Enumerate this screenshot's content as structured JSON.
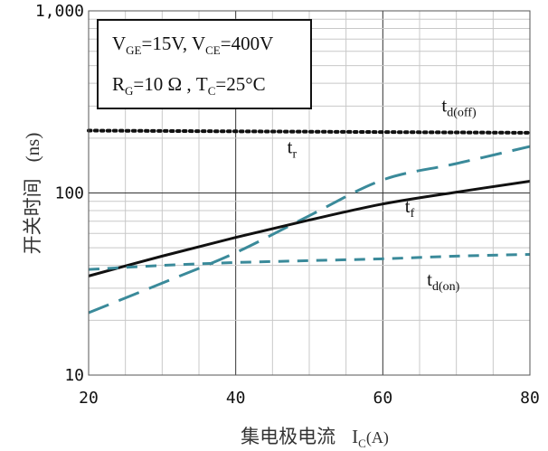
{
  "chart_data": {
    "type": "line",
    "xlabel": "集电极电流",
    "xlabel_symbol": "I",
    "xlabel_sub": "C",
    "xlabel_unit": "(A)",
    "ylabel": "开关时间",
    "ylabel_unit": "(ns)",
    "xlim": [
      20,
      80
    ],
    "ylim": [
      10,
      1000
    ],
    "yscale": "log",
    "x_ticks": [
      "20",
      "40",
      "60",
      "80"
    ],
    "y_ticks": [
      "10",
      "100",
      "1,000"
    ],
    "x_tick_values": [
      20,
      40,
      60,
      80
    ],
    "y_tick_values": [
      10,
      100,
      1000
    ],
    "grid": true,
    "conditions": {
      "line1": {
        "V1": "V",
        "V1_sub": "GE",
        "V1_val": "=15V, ",
        "V2": "V",
        "V2_sub": "CE",
        "V2_val": "=400V"
      },
      "line2": {
        "R": "R",
        "R_sub": "G",
        "R_val": "=10 Ω , ",
        "T": "T",
        "T_sub": "C",
        "T_val": "=25°C"
      }
    },
    "series": [
      {
        "name": "t",
        "sub": "d(off)",
        "style": "dotted",
        "color": "#111111",
        "x": [
          20,
          30,
          40,
          50,
          60,
          70,
          80
        ],
        "y": [
          220,
          219,
          218,
          217,
          216,
          215,
          214
        ]
      },
      {
        "name": "t",
        "sub": "r",
        "style": "dashed",
        "color": "#3a8a9a",
        "x": [
          20,
          30,
          40,
          50,
          60,
          70,
          80
        ],
        "y": [
          22,
          32,
          47,
          75,
          118,
          145,
          180
        ]
      },
      {
        "name": "t",
        "sub": "f",
        "style": "solid",
        "color": "#111111",
        "x": [
          20,
          30,
          40,
          50,
          60,
          70,
          80
        ],
        "y": [
          35,
          45,
          57,
          71,
          87,
          101,
          116
        ]
      },
      {
        "name": "t",
        "sub": "d(on)",
        "style": "dashed-short",
        "color": "#3a8a9a",
        "x": [
          20,
          30,
          40,
          50,
          60,
          70,
          80
        ],
        "y": [
          38,
          40,
          41.5,
          42.5,
          43.5,
          45,
          46
        ]
      }
    ]
  }
}
